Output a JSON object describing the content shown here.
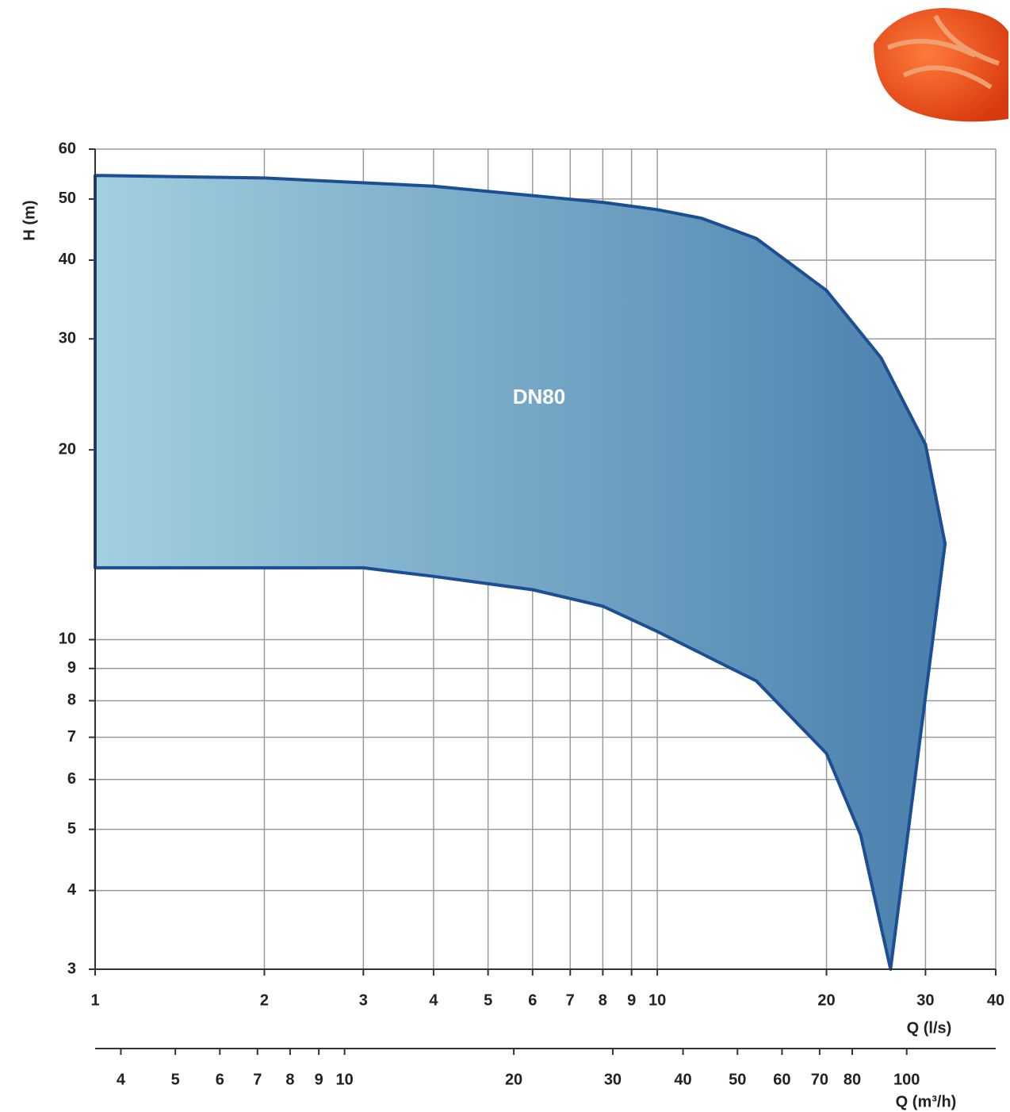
{
  "chart_data": {
    "type": "range-area",
    "x_label": "Q (l/s)",
    "x2_label": "Q (m³/h)",
    "y_label": "H (m)",
    "xscale": "log",
    "yscale": "log",
    "grid": true,
    "xlim": [
      1,
      40
    ],
    "xticks": [
      1,
      2,
      3,
      4,
      5,
      6,
      7,
      8,
      9,
      10,
      20,
      30,
      40
    ],
    "x2lim": [
      3.6,
      144
    ],
    "x2ticks": [
      4,
      5,
      6,
      7,
      8,
      9,
      10,
      20,
      30,
      40,
      50,
      60,
      70,
      80,
      100
    ],
    "ylim": [
      3,
      60
    ],
    "yticks": [
      3,
      4,
      5,
      6,
      7,
      8,
      9,
      10,
      20,
      30,
      40,
      50,
      60
    ],
    "series": [
      {
        "name": "DN80",
        "color": "#1c4e94",
        "x": [
          1,
          1,
          2,
          4,
          8,
          10,
          12,
          15,
          20,
          25,
          30,
          32.5,
          26,
          23,
          20,
          15,
          10,
          8,
          6,
          4,
          3,
          1
        ],
        "values": [
          13.0,
          54.5,
          54,
          52.4,
          49.4,
          48.1,
          46.6,
          43.3,
          35.8,
          28,
          20.4,
          14.2,
          3,
          4.9,
          6.6,
          8.6,
          10.3,
          11.3,
          12.0,
          12.6,
          13.0,
          13.0
        ]
      }
    ]
  }
}
